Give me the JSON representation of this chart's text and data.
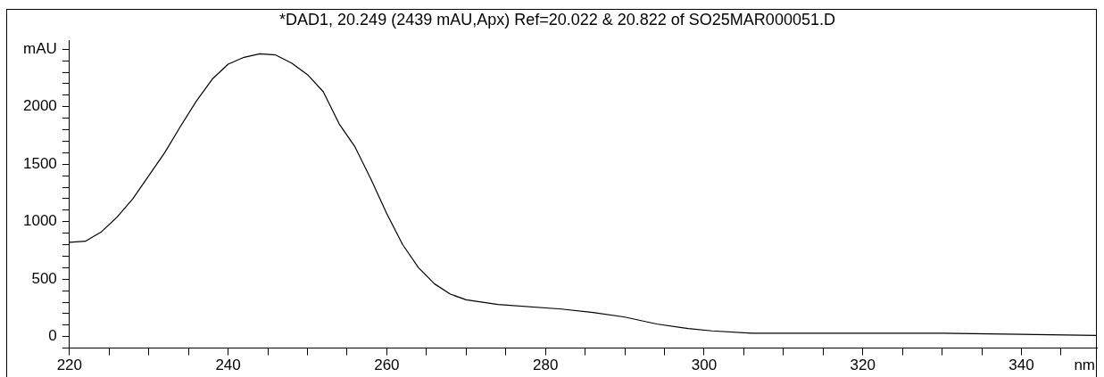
{
  "chart_data": {
    "type": "line",
    "title": "*DAD1, 20.249 (2439 mAU,Apx) Ref=20.022 & 20.822 of SO25MAR000051.D",
    "xlabel": "nm",
    "x": [
      220,
      222,
      224,
      226,
      228,
      230,
      232,
      234,
      236,
      238,
      240,
      242,
      244,
      246,
      248,
      250,
      252,
      254,
      256,
      258,
      260,
      262,
      264,
      266,
      268,
      270,
      274,
      282,
      286,
      290,
      294,
      298,
      301,
      306,
      320,
      330,
      340,
      349.5
    ],
    "series": [
      {
        "color": "#000000",
        "values": [
          820,
          830,
          910,
          1040,
          1200,
          1400,
          1600,
          1830,
          2050,
          2240,
          2370,
          2430,
          2460,
          2450,
          2380,
          2280,
          2130,
          1850,
          1650,
          1370,
          1070,
          800,
          600,
          460,
          370,
          320,
          280,
          240,
          210,
          170,
          110,
          70,
          50,
          30,
          30,
          30,
          20,
          10
        ]
      }
    ],
    "xlim": [
      220,
      349.5
    ],
    "xticks": [
      220,
      {
        "value": 225,
        "label": null
      },
      {
        "value": 230,
        "label": null
      },
      {
        "value": 235,
        "label": null
      },
      240,
      {
        "value": 245,
        "label": null
      },
      {
        "value": 250,
        "label": null
      },
      {
        "value": 255,
        "label": null
      },
      260,
      {
        "value": 265,
        "label": null
      },
      {
        "value": 270,
        "label": null
      },
      {
        "value": 275,
        "label": null
      },
      280,
      {
        "value": 285,
        "label": null
      },
      {
        "value": 290,
        "label": null
      },
      {
        "value": 295,
        "label": null
      },
      300,
      {
        "value": 305,
        "label": null
      },
      {
        "value": 310,
        "label": null
      },
      {
        "value": 315,
        "label": null
      },
      320,
      {
        "value": 325,
        "label": null
      },
      {
        "value": 330,
        "label": null
      },
      {
        "value": 335,
        "label": null
      },
      340,
      {
        "value": 345,
        "label": null
      }
    ],
    "ylim": [
      -100,
      2575
    ],
    "yticks": [
      {
        "value": -100,
        "label": null
      },
      0,
      {
        "value": 100,
        "label": null
      },
      {
        "value": 200,
        "label": null
      },
      {
        "value": 300,
        "label": null
      },
      {
        "value": 400,
        "label": null
      },
      500,
      {
        "value": 600,
        "label": null
      },
      {
        "value": 700,
        "label": null
      },
      {
        "value": 800,
        "label": null
      },
      {
        "value": 900,
        "label": null
      },
      1000,
      {
        "value": 1100,
        "label": null
      },
      {
        "value": 1200,
        "label": null
      },
      {
        "value": 1300,
        "label": null
      },
      {
        "value": 1400,
        "label": null
      },
      1500,
      {
        "value": 1600,
        "label": null
      },
      {
        "value": 1700,
        "label": null
      },
      {
        "value": 1800,
        "label": null
      },
      {
        "value": 1900,
        "label": null
      },
      2000,
      {
        "value": 2100,
        "label": null
      },
      {
        "value": 2200,
        "label": null
      },
      {
        "value": 2300,
        "label": null
      },
      {
        "value": 2400,
        "label": null
      },
      {
        "value": 2500,
        "label": "mAU"
      }
    ],
    "grid": false,
    "legend": false,
    "marker": "none",
    "line_style": "solid"
  }
}
